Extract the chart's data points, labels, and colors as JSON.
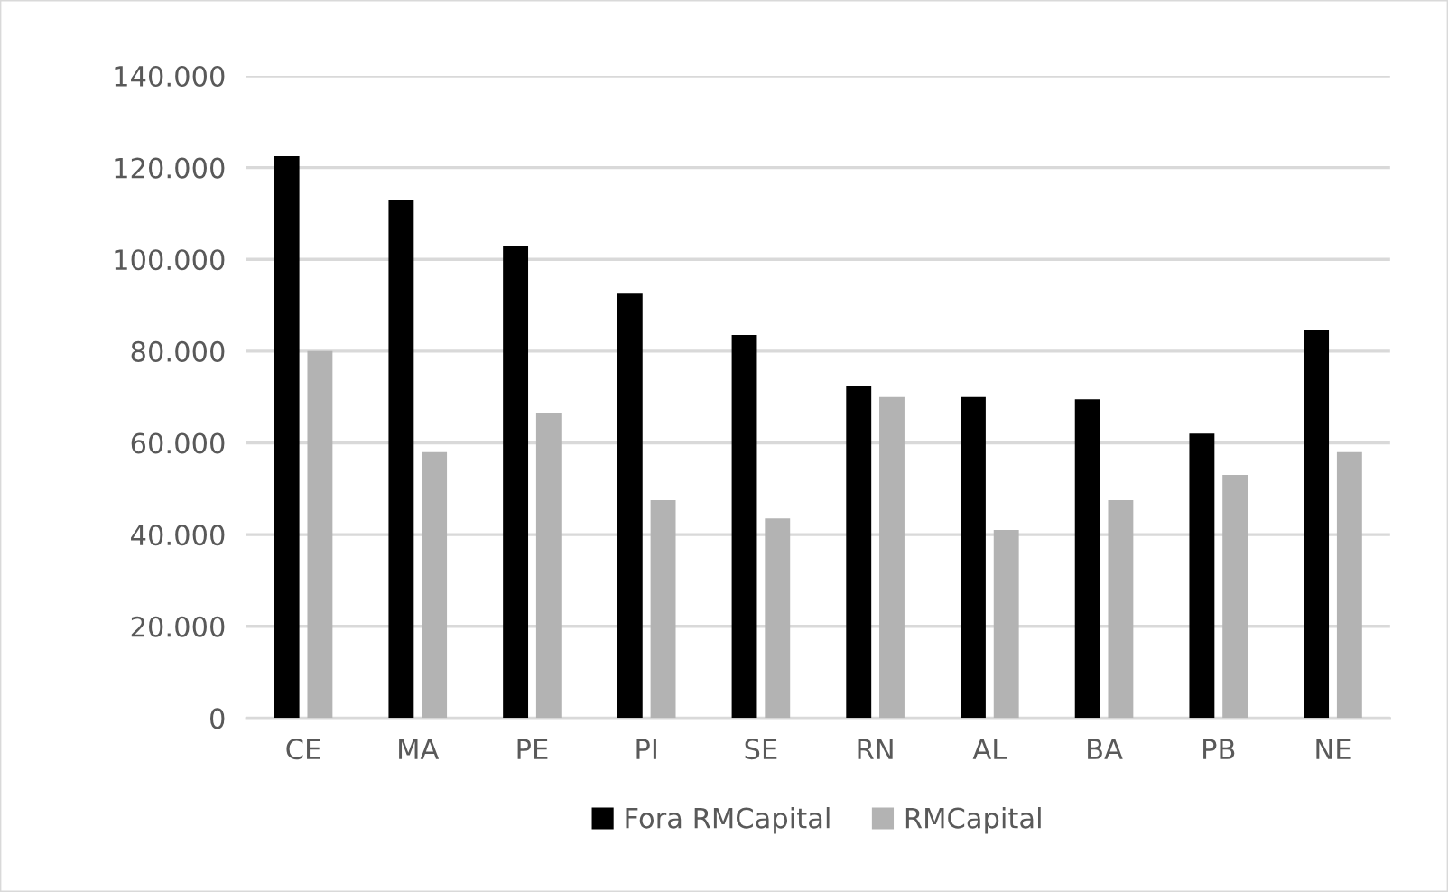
{
  "chart_data": {
    "type": "bar",
    "categories": [
      "CE",
      "MA",
      "PE",
      "PI",
      "SE",
      "RN",
      "AL",
      "BA",
      "PB",
      "NE"
    ],
    "series": [
      {
        "name": "Fora RMCapital",
        "color": "#000000",
        "values": [
          122500,
          113000,
          103000,
          92500,
          83500,
          72500,
          70000,
          69500,
          62000,
          84500
        ]
      },
      {
        "name": "RMCapital",
        "color": "#b3b3b3",
        "values": [
          80000,
          58000,
          66500,
          47500,
          43500,
          70000,
          41000,
          47500,
          53000,
          58000
        ]
      }
    ],
    "ylim": [
      0,
      140000
    ],
    "yticks": [
      {
        "value": 0,
        "label": "0"
      },
      {
        "value": 20000,
        "label": "20.000"
      },
      {
        "value": 40000,
        "label": "40.000"
      },
      {
        "value": 60000,
        "label": "60.000"
      },
      {
        "value": 80000,
        "label": "80.000"
      },
      {
        "value": 100000,
        "label": "100.000"
      },
      {
        "value": 120000,
        "label": "120.000"
      },
      {
        "value": 140000,
        "label": "140.000"
      }
    ],
    "grid": "y",
    "legend": "bottom"
  }
}
